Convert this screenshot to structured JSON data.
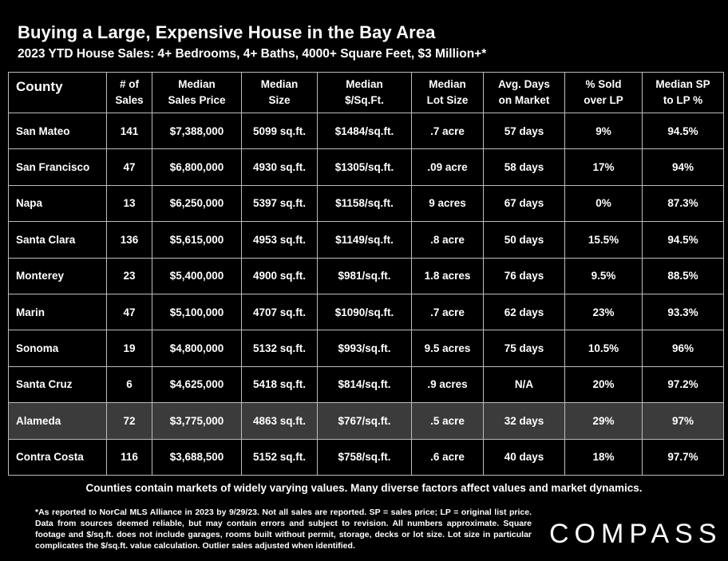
{
  "title": "Buying a Large, Expensive House in the Bay Area",
  "subtitle": "2023 YTD House Sales:  4+ Bedrooms, 4+ Baths, 4000+ Square Feet, $3 Million+*",
  "chart_data": {
    "type": "table",
    "columns": [
      [
        "County"
      ],
      [
        "# of",
        "Sales"
      ],
      [
        "Median",
        "Sales Price"
      ],
      [
        "Median",
        "Size"
      ],
      [
        "Median",
        "$/Sq.Ft."
      ],
      [
        "Median",
        "Lot Size"
      ],
      [
        "Avg. Days",
        "on Market"
      ],
      [
        "% Sold",
        "over LP"
      ],
      [
        "Median SP",
        "to LP %"
      ]
    ],
    "rows": [
      [
        "San Mateo",
        "141",
        "$7,388,000",
        "5099 sq.ft.",
        "$1484/sq.ft.",
        ".7 acre",
        "57 days",
        "9%",
        "94.5%"
      ],
      [
        "San Francisco",
        "47",
        "$6,800,000",
        "4930 sq.ft.",
        "$1305/sq.ft.",
        ".09 acre",
        "58 days",
        "17%",
        "94%"
      ],
      [
        "Napa",
        "13",
        "$6,250,000",
        "5397 sq.ft.",
        "$1158/sq.ft.",
        "9 acres",
        "67 days",
        "0%",
        "87.3%"
      ],
      [
        "Santa Clara",
        "136",
        "$5,615,000",
        "4953 sq.ft.",
        "$1149/sq.ft.",
        ".8 acre",
        "50 days",
        "15.5%",
        "94.5%"
      ],
      [
        "Monterey",
        "23",
        "$5,400,000",
        "4900 sq.ft.",
        "$981/sq.ft.",
        "1.8 acres",
        "76 days",
        "9.5%",
        "88.5%"
      ],
      [
        "Marin",
        "47",
        "$5,100,000",
        "4707 sq.ft.",
        "$1090/sq.ft.",
        ".7 acre",
        "62 days",
        "23%",
        "93.3%"
      ],
      [
        "Sonoma",
        "19",
        "$4,800,000",
        "5132 sq.ft.",
        "$993/sq.ft.",
        "9.5 acres",
        "75 days",
        "10.5%",
        "96%"
      ],
      [
        "Santa Cruz",
        "6",
        "$4,625,000",
        "5418 sq.ft.",
        "$814/sq.ft.",
        ".9 acres",
        "N/A",
        "20%",
        "97.2%"
      ],
      [
        "Alameda",
        "72",
        "$3,775,000",
        "4863 sq.ft.",
        "$767/sq.ft.",
        ".5 acre",
        "32 days",
        "29%",
        "97%"
      ],
      [
        "Contra Costa",
        "116",
        "$3,688,500",
        "5152 sq.ft.",
        "$758/sq.ft.",
        ".6 acre",
        "40 days",
        "18%",
        "97.7%"
      ]
    ],
    "highlighted_row": 8
  },
  "note": "Counties contain markets of widely varying values. Many diverse factors affect values and market dynamics.",
  "footnote": "*As reported to NorCal MLS Alliance in 2023 by 9/29/23. Not all sales are reported. SP = sales price;  LP = original list price. Data from sources deemed reliable, but may contain errors and subject to revision. All numbers approximate. Square footage and $/sq.ft. does not include garages, rooms built without permit, storage, decks or lot size. Lot size in particular complicates the $/sq.ft. value calculation. Outlier sales adjusted when identified.",
  "logo_text": "COMPASS",
  "colors": {
    "background": "#000000",
    "text": "#ffffff",
    "border": "#bdbdbd",
    "highlight_row": "#3b3b3b"
  }
}
